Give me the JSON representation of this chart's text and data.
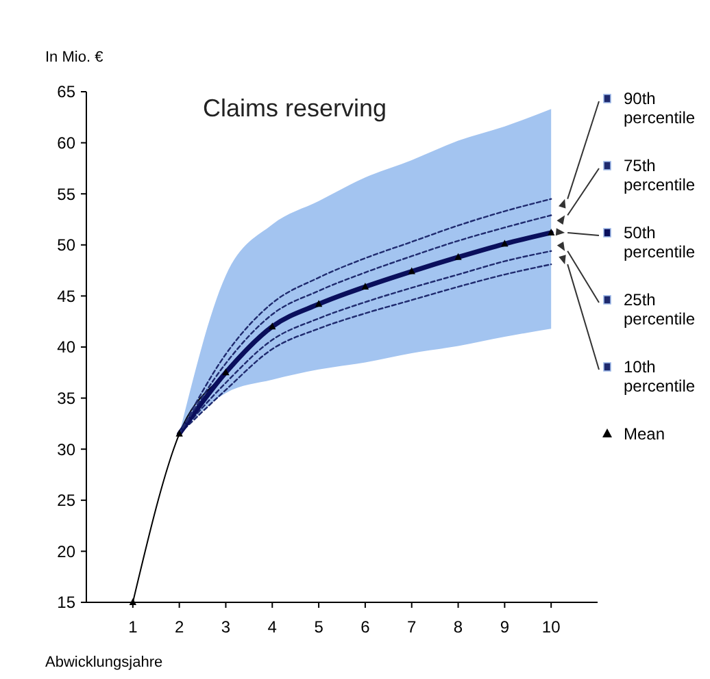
{
  "chart_data": {
    "type": "line",
    "title": "Claims reserving",
    "xlabel": "Abwicklungsjahre",
    "ylabel": "In Mio. €",
    "xlim": [
      0,
      11
    ],
    "xticks": [
      1,
      2,
      3,
      4,
      5,
      6,
      7,
      8,
      9,
      10
    ],
    "ylim": [
      15,
      65
    ],
    "yticks": [
      15,
      20,
      25,
      30,
      35,
      40,
      45,
      50,
      55,
      60,
      65
    ],
    "grid": false,
    "legend": "right",
    "line_style": "dashed",
    "series": [
      {
        "name": "90th percentile",
        "color": "#1f2a6e",
        "x": [
          2,
          3,
          4,
          5,
          6,
          7,
          8,
          9,
          10
        ],
        "values": [
          31.5,
          39.3,
          44.3,
          46.8,
          48.7,
          50.3,
          51.9,
          53.3,
          54.5
        ]
      },
      {
        "name": "75th percentile",
        "color": "#1f2a6e",
        "x": [
          2,
          3,
          4,
          5,
          6,
          7,
          8,
          9,
          10
        ],
        "values": [
          31.5,
          38.4,
          43.2,
          45.5,
          47.3,
          48.9,
          50.4,
          51.7,
          52.9
        ]
      },
      {
        "name": "50th percentile",
        "color": "#0a0f5c",
        "line_style": "solid",
        "x": [
          2,
          3,
          4,
          5,
          6,
          7,
          8,
          9,
          10
        ],
        "values": [
          31.5,
          37.5,
          42,
          44.2,
          45.9,
          47.4,
          48.8,
          50.1,
          51.2
        ],
        "lower": [
          31.5,
          35.5,
          36.8,
          37.8,
          38.5,
          39.4,
          40.1,
          41,
          41.8
        ],
        "upper": [
          31.5,
          47,
          52,
          54.3,
          56.6,
          58.3,
          60.2,
          61.6,
          63.3
        ]
      },
      {
        "name": "25th percentile",
        "color": "#1f2a6e",
        "x": [
          2,
          3,
          4,
          5,
          6,
          7,
          8,
          9,
          10
        ],
        "values": [
          31.5,
          36.5,
          40.7,
          42.8,
          44.4,
          45.8,
          47.1,
          48.4,
          49.4
        ]
      },
      {
        "name": "10th percentile",
        "color": "#1f2a6e",
        "x": [
          2,
          3,
          4,
          5,
          6,
          7,
          8,
          9,
          10
        ],
        "values": [
          31.5,
          35.8,
          39.8,
          41.8,
          43.3,
          44.6,
          45.9,
          47.1,
          48.1
        ]
      },
      {
        "name": "Mean",
        "color": "#000000",
        "line_style": "solid",
        "marker": "triangle",
        "x": [
          1,
          2,
          3,
          4,
          5,
          6,
          7,
          8,
          9,
          10
        ],
        "values": [
          15,
          31.5,
          37.5,
          42,
          44.2,
          45.9,
          47.4,
          48.8,
          50.1,
          51.2
        ]
      }
    ]
  }
}
